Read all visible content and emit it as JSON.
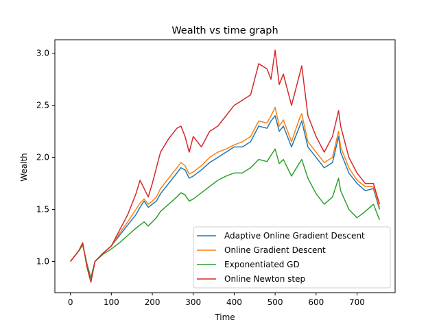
{
  "chart_data": {
    "type": "line",
    "title": "Wealth vs time graph",
    "xlabel": "Time",
    "ylabel": "Wealth",
    "xlim": [
      -38,
      793
    ],
    "ylim": [
      0.7,
      3.13
    ],
    "xticks": [
      0,
      100,
      200,
      300,
      400,
      500,
      600,
      700
    ],
    "xtick_labels": [
      "0",
      "100",
      "200",
      "300",
      "400",
      "500",
      "600",
      "700"
    ],
    "yticks": [
      1.0,
      1.5,
      2.0,
      2.5,
      3.0
    ],
    "ytick_labels": [
      "1.0",
      "1.5",
      "2.0",
      "2.5",
      "3.0"
    ],
    "grid": false,
    "legend_position": "lower right",
    "x": [
      0,
      20,
      30,
      40,
      50,
      60,
      80,
      100,
      120,
      140,
      160,
      170,
      180,
      190,
      200,
      210,
      220,
      240,
      260,
      270,
      280,
      290,
      300,
      320,
      340,
      360,
      380,
      400,
      420,
      440,
      460,
      480,
      490,
      500,
      510,
      520,
      540,
      560,
      565,
      580,
      600,
      620,
      640,
      655,
      660,
      680,
      700,
      720,
      740,
      755
    ],
    "series": [
      {
        "name": "Adaptive Online Gradient Descent",
        "color": "#1f77b4",
        "values": [
          1.0,
          1.1,
          1.16,
          0.98,
          0.84,
          1.0,
          1.08,
          1.15,
          1.25,
          1.35,
          1.45,
          1.52,
          1.58,
          1.52,
          1.55,
          1.58,
          1.65,
          1.75,
          1.85,
          1.9,
          1.88,
          1.8,
          1.82,
          1.88,
          1.95,
          2.0,
          2.05,
          2.1,
          2.1,
          2.15,
          2.3,
          2.28,
          2.35,
          2.4,
          2.25,
          2.3,
          2.1,
          2.3,
          2.35,
          2.1,
          2.0,
          1.9,
          1.95,
          2.2,
          2.05,
          1.85,
          1.75,
          1.68,
          1.7,
          1.5
        ]
      },
      {
        "name": "Online Gradient Descent",
        "color": "#ff7f0e",
        "values": [
          1.0,
          1.1,
          1.16,
          0.98,
          0.84,
          1.0,
          1.08,
          1.15,
          1.27,
          1.38,
          1.5,
          1.56,
          1.6,
          1.55,
          1.58,
          1.62,
          1.7,
          1.8,
          1.9,
          1.95,
          1.92,
          1.84,
          1.86,
          1.92,
          2.0,
          2.05,
          2.08,
          2.12,
          2.15,
          2.2,
          2.35,
          2.33,
          2.4,
          2.48,
          2.3,
          2.36,
          2.15,
          2.38,
          2.42,
          2.15,
          2.05,
          1.95,
          2.0,
          2.25,
          2.1,
          1.9,
          1.78,
          1.72,
          1.72,
          1.52
        ]
      },
      {
        "name": "Exponentiated GD",
        "color": "#2ca02c",
        "values": [
          1.0,
          1.1,
          1.16,
          0.98,
          0.84,
          1.0,
          1.07,
          1.12,
          1.18,
          1.25,
          1.32,
          1.35,
          1.38,
          1.34,
          1.38,
          1.42,
          1.48,
          1.55,
          1.62,
          1.66,
          1.64,
          1.58,
          1.6,
          1.66,
          1.72,
          1.78,
          1.82,
          1.85,
          1.85,
          1.9,
          1.98,
          1.96,
          2.02,
          2.08,
          1.94,
          1.98,
          1.82,
          1.95,
          1.98,
          1.8,
          1.65,
          1.55,
          1.62,
          1.8,
          1.68,
          1.5,
          1.42,
          1.48,
          1.55,
          1.4
        ]
      },
      {
        "name": "Online Newton step",
        "color": "#d62728",
        "values": [
          1.0,
          1.1,
          1.18,
          0.95,
          0.8,
          1.0,
          1.08,
          1.15,
          1.3,
          1.45,
          1.65,
          1.78,
          1.7,
          1.62,
          1.75,
          1.9,
          2.05,
          2.18,
          2.28,
          2.3,
          2.2,
          2.05,
          2.2,
          2.1,
          2.25,
          2.3,
          2.4,
          2.5,
          2.55,
          2.6,
          2.9,
          2.85,
          2.75,
          3.03,
          2.7,
          2.8,
          2.5,
          2.8,
          2.88,
          2.4,
          2.2,
          2.05,
          2.2,
          2.45,
          2.3,
          2.0,
          1.85,
          1.75,
          1.75,
          1.55
        ]
      }
    ]
  }
}
